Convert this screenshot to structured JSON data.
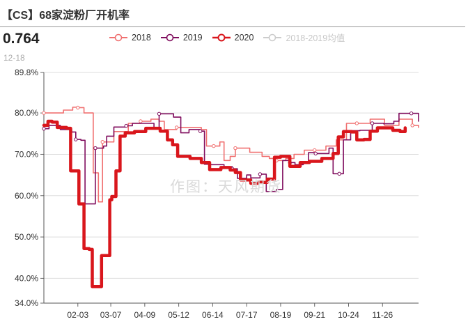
{
  "header": {
    "title": "【CS】68家淀粉厂开机率"
  },
  "summary": {
    "latest_value": "0.764",
    "latest_date": "12-18"
  },
  "watermark": "作图：天风期货",
  "colors": {
    "2018": "#f07070",
    "2019": "#800d5e",
    "2020": "#d9161c",
    "avg": "#cccccc",
    "grid": "#dddddd"
  },
  "chart_data": {
    "type": "line",
    "title": "【CS】68家淀粉厂开机率",
    "xlabel": "",
    "ylabel": "",
    "x_ticks": [
      "02-03",
      "03-07",
      "04-09",
      "05-12",
      "06-14",
      "07-17",
      "08-19",
      "09-21",
      "10-24",
      "11-26"
    ],
    "y_ticks": [
      "89.8%",
      "80.0%",
      "70.0%",
      "60.0%",
      "50.0%",
      "40.0%",
      "34.0%"
    ],
    "ylim": [
      34.0,
      89.8
    ],
    "grid": true,
    "legend_position": "top",
    "series": [
      {
        "name": "2018",
        "style": "thin",
        "points": [
          [
            "01-01",
            80.0
          ],
          [
            "01-14",
            80.0
          ],
          [
            "01-20",
            80.7
          ],
          [
            "01-29",
            81.4
          ],
          [
            "02-03",
            81.3
          ],
          [
            "02-09",
            80.0
          ],
          [
            "02-18",
            65.5
          ],
          [
            "02-23",
            58.5
          ],
          [
            "02-27",
            73.0
          ],
          [
            "03-03",
            73.0
          ],
          [
            "03-10",
            75.5
          ],
          [
            "03-24",
            77.5
          ],
          [
            "04-05",
            78.0
          ],
          [
            "04-15",
            78.5
          ],
          [
            "04-23",
            78.0
          ],
          [
            "04-28",
            76.0
          ],
          [
            "05-10",
            76.5
          ],
          [
            "05-24",
            76.5
          ],
          [
            "06-03",
            76.0
          ],
          [
            "06-08",
            72.0
          ],
          [
            "06-15",
            72.0
          ],
          [
            "06-21",
            73.0
          ],
          [
            "06-25",
            68.5
          ],
          [
            "07-01",
            69.5
          ],
          [
            "07-06",
            71.5
          ],
          [
            "07-20",
            70.5
          ],
          [
            "08-01",
            69.5
          ],
          [
            "08-08",
            69.0
          ],
          [
            "08-15",
            68.5
          ],
          [
            "08-24",
            69.0
          ],
          [
            "09-01",
            70.0
          ],
          [
            "09-11",
            71.0
          ],
          [
            "09-21",
            71.0
          ],
          [
            "10-02",
            72.0
          ],
          [
            "10-12",
            73.5
          ],
          [
            "10-22",
            77.5
          ],
          [
            "11-01",
            77.5
          ],
          [
            "11-14",
            78.5
          ],
          [
            "11-28",
            77.0
          ],
          [
            "12-12",
            78.5
          ],
          [
            "12-25",
            77.0
          ],
          [
            "12-31",
            76.5
          ]
        ]
      },
      {
        "name": "2019",
        "style": "thin",
        "points": [
          [
            "01-01",
            76.2
          ],
          [
            "01-06",
            77.0
          ],
          [
            "01-17",
            76.0
          ],
          [
            "01-28",
            75.4
          ],
          [
            "02-01",
            73.6
          ],
          [
            "02-06",
            73.4
          ],
          [
            "02-10",
            58.0
          ],
          [
            "02-17",
            58.0
          ],
          [
            "02-20",
            71.5
          ],
          [
            "02-28",
            72.0
          ],
          [
            "03-03",
            74.4
          ],
          [
            "03-10",
            76.6
          ],
          [
            "03-22",
            76.9
          ],
          [
            "03-28",
            77.5
          ],
          [
            "04-08",
            77.5
          ],
          [
            "04-18",
            76.5
          ],
          [
            "04-23",
            79.8
          ],
          [
            "05-07",
            79.0
          ],
          [
            "05-14",
            75.2
          ],
          [
            "05-22",
            76.0
          ],
          [
            "06-02",
            75.6
          ],
          [
            "06-06",
            67.6
          ],
          [
            "06-12",
            67.5
          ],
          [
            "06-25",
            67.0
          ],
          [
            "07-03",
            66.5
          ],
          [
            "07-08",
            64.2
          ],
          [
            "07-17",
            65.0
          ],
          [
            "07-21",
            64.3
          ],
          [
            "07-30",
            65.2
          ],
          [
            "08-05",
            61.0
          ],
          [
            "08-15",
            61.5
          ],
          [
            "08-21",
            68.5
          ],
          [
            "08-28",
            68.0
          ],
          [
            "09-02",
            67.5
          ],
          [
            "09-10",
            67.9
          ],
          [
            "09-15",
            70.4
          ],
          [
            "09-22",
            70.2
          ],
          [
            "09-29",
            70.2
          ],
          [
            "10-05",
            71.5
          ],
          [
            "10-09",
            65.3
          ],
          [
            "10-15",
            65.3
          ],
          [
            "10-19",
            73.5
          ],
          [
            "10-26",
            75.7
          ],
          [
            "11-04",
            75.8
          ],
          [
            "11-16",
            77.5
          ],
          [
            "11-27",
            77.4
          ],
          [
            "12-07",
            78.0
          ],
          [
            "12-12",
            79.9
          ],
          [
            "12-24",
            79.9
          ],
          [
            "12-31",
            78.0
          ]
        ]
      },
      {
        "name": "2020",
        "style": "bold",
        "points": [
          [
            "01-01",
            77.0
          ],
          [
            "01-05",
            78.0
          ],
          [
            "01-09",
            77.8
          ],
          [
            "01-14",
            76.5
          ],
          [
            "01-23",
            76.3
          ],
          [
            "01-27",
            66.0
          ],
          [
            "02-01",
            66.0
          ],
          [
            "02-04",
            58.0
          ],
          [
            "02-09",
            47.2
          ],
          [
            "02-14",
            47.0
          ],
          [
            "02-17",
            38.0
          ],
          [
            "02-23",
            38.0
          ],
          [
            "02-26",
            45.5
          ],
          [
            "03-02",
            45.5
          ],
          [
            "03-06",
            59.0
          ],
          [
            "03-08",
            59.8
          ],
          [
            "03-12",
            66.0
          ],
          [
            "03-16",
            74.4
          ],
          [
            "03-21",
            75.2
          ],
          [
            "03-30",
            75.5
          ],
          [
            "04-10",
            76.3
          ],
          [
            "04-24",
            75.6
          ],
          [
            "05-01",
            73.5
          ],
          [
            "05-06",
            72.3
          ],
          [
            "05-11",
            69.5
          ],
          [
            "05-23",
            69.0
          ],
          [
            "06-03",
            68.0
          ],
          [
            "06-11",
            66.3
          ],
          [
            "06-22",
            66.8
          ],
          [
            "07-01",
            66.2
          ],
          [
            "07-06",
            65.6
          ],
          [
            "07-11",
            63.8
          ],
          [
            "07-21",
            63.0
          ],
          [
            "07-28",
            63.2
          ],
          [
            "08-06",
            64.0
          ],
          [
            "08-13",
            69.3
          ],
          [
            "08-19",
            69.5
          ],
          [
            "08-28",
            67.1
          ],
          [
            "09-07",
            68.0
          ],
          [
            "09-16",
            68.3
          ],
          [
            "09-28",
            69.0
          ],
          [
            "10-09",
            70.2
          ],
          [
            "10-14",
            74.2
          ],
          [
            "10-19",
            75.5
          ],
          [
            "10-27",
            75.4
          ],
          [
            "11-01",
            73.5
          ],
          [
            "11-08",
            73.6
          ],
          [
            "11-14",
            75.6
          ],
          [
            "11-21",
            76.4
          ],
          [
            "11-28",
            76.4
          ],
          [
            "12-06",
            75.8
          ],
          [
            "12-13",
            75.5
          ],
          [
            "12-18",
            76.4
          ]
        ]
      },
      {
        "name": "2018-2019均值",
        "style": "faded",
        "points": []
      }
    ]
  }
}
